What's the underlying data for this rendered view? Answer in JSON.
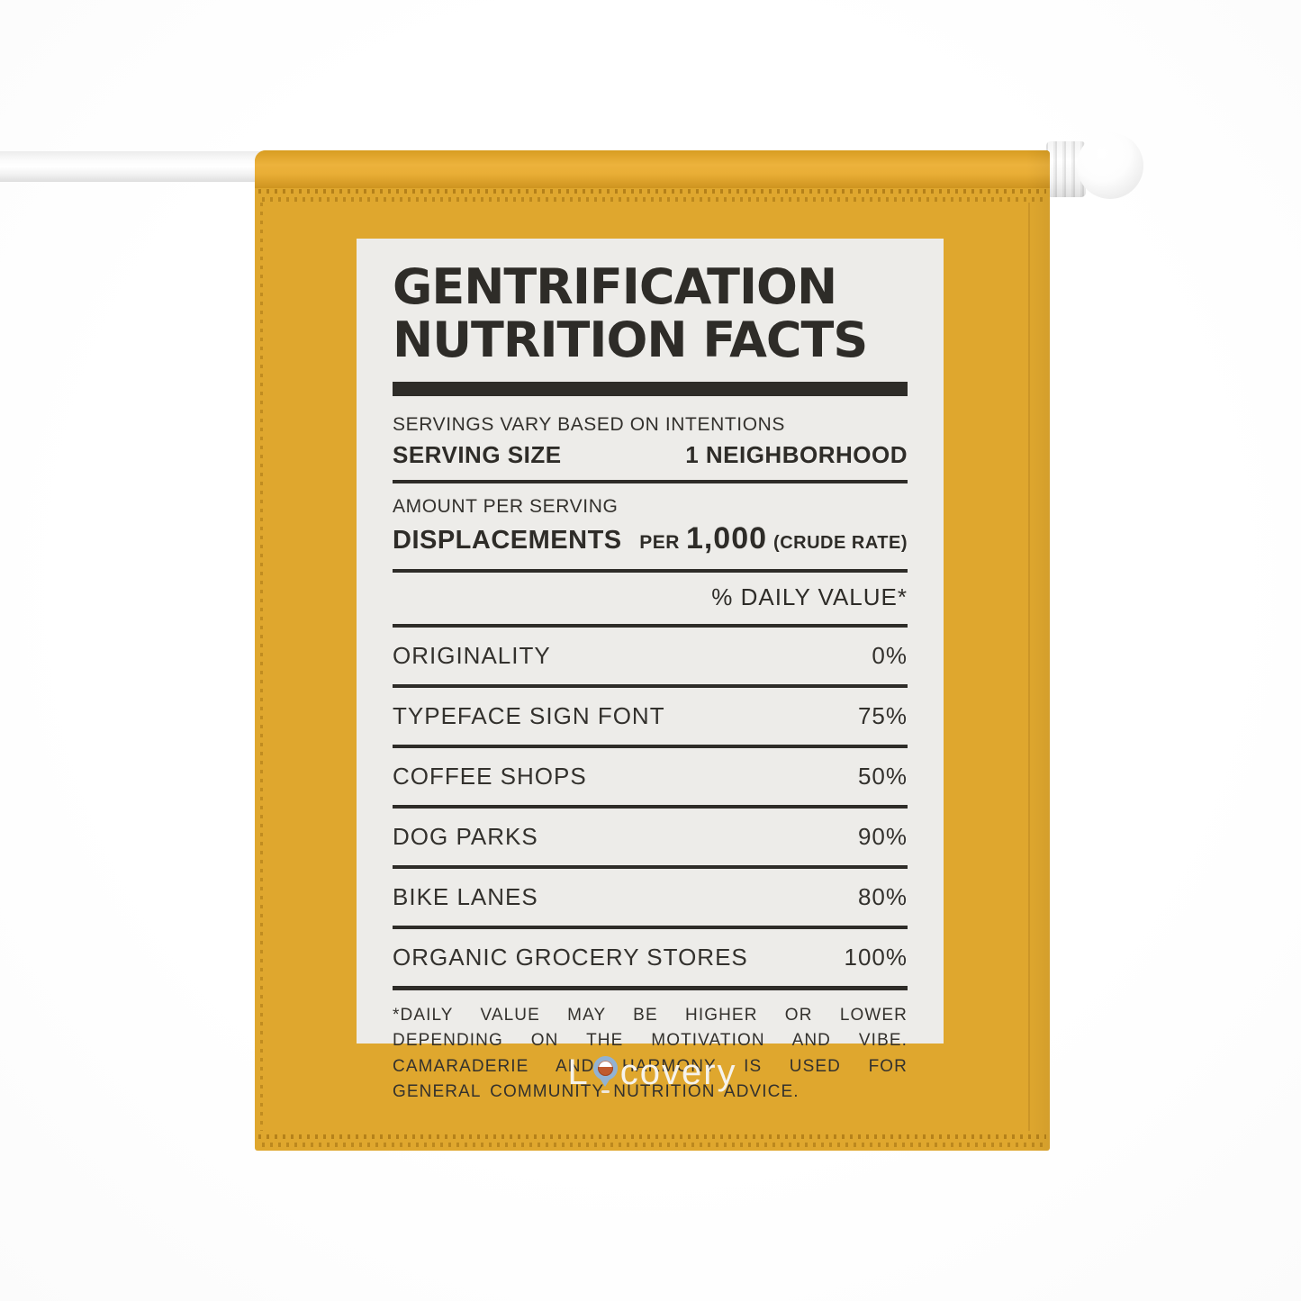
{
  "product": {
    "type": "garden flag mockup",
    "colors": {
      "flag_yellow": "#DFA72E",
      "panel_bg": "#EDECE9",
      "ink": "#2E2C28",
      "pole_white": "#FAFAFA",
      "pin_blue": "#92B2D3",
      "pin_orange": "#C05A2E",
      "logo_text": "#F6F3EC"
    }
  },
  "label": {
    "title_line1": "GENTRIFICATION",
    "title_line2": "NUTRITION FACTS",
    "servings_note": "SERVINGS VARY BASED ON INTENTIONS",
    "serving_size_label": "SERVING SIZE",
    "serving_size_value": "1 NEIGHBORHOOD",
    "amount_label": "AMOUNT PER SERVING",
    "amount_name": "DISPLACEMENTS",
    "per_prefix": "PER",
    "per_value": "1,000",
    "per_suffix": "(CRUDE RATE)",
    "daily_value_header": "% DAILY VALUE*",
    "rows": [
      {
        "name": "ORIGINALITY",
        "value": "0%"
      },
      {
        "name": "TYPEFACE SIGN FONT",
        "value": "75%"
      },
      {
        "name": "COFFEE SHOPS",
        "value": "50%"
      },
      {
        "name": "DOG PARKS",
        "value": "90%"
      },
      {
        "name": "BIKE LANES",
        "value": "80%"
      },
      {
        "name": "ORGANIC GROCERY STORES",
        "value": "100%"
      }
    ],
    "footnote": "*DAILY VALUE MAY BE HIGHER OR LOWER DEPENDING ON THE MOTIVATION AND VIBE. CAMARADERIE AND HARMONY IS USED FOR GENERAL COMMUNITY NUTRITION ADVICE."
  },
  "brand": {
    "logo_prefix": "L",
    "logo_suffix": "covery",
    "logo_icon": "location-pin-icon"
  }
}
